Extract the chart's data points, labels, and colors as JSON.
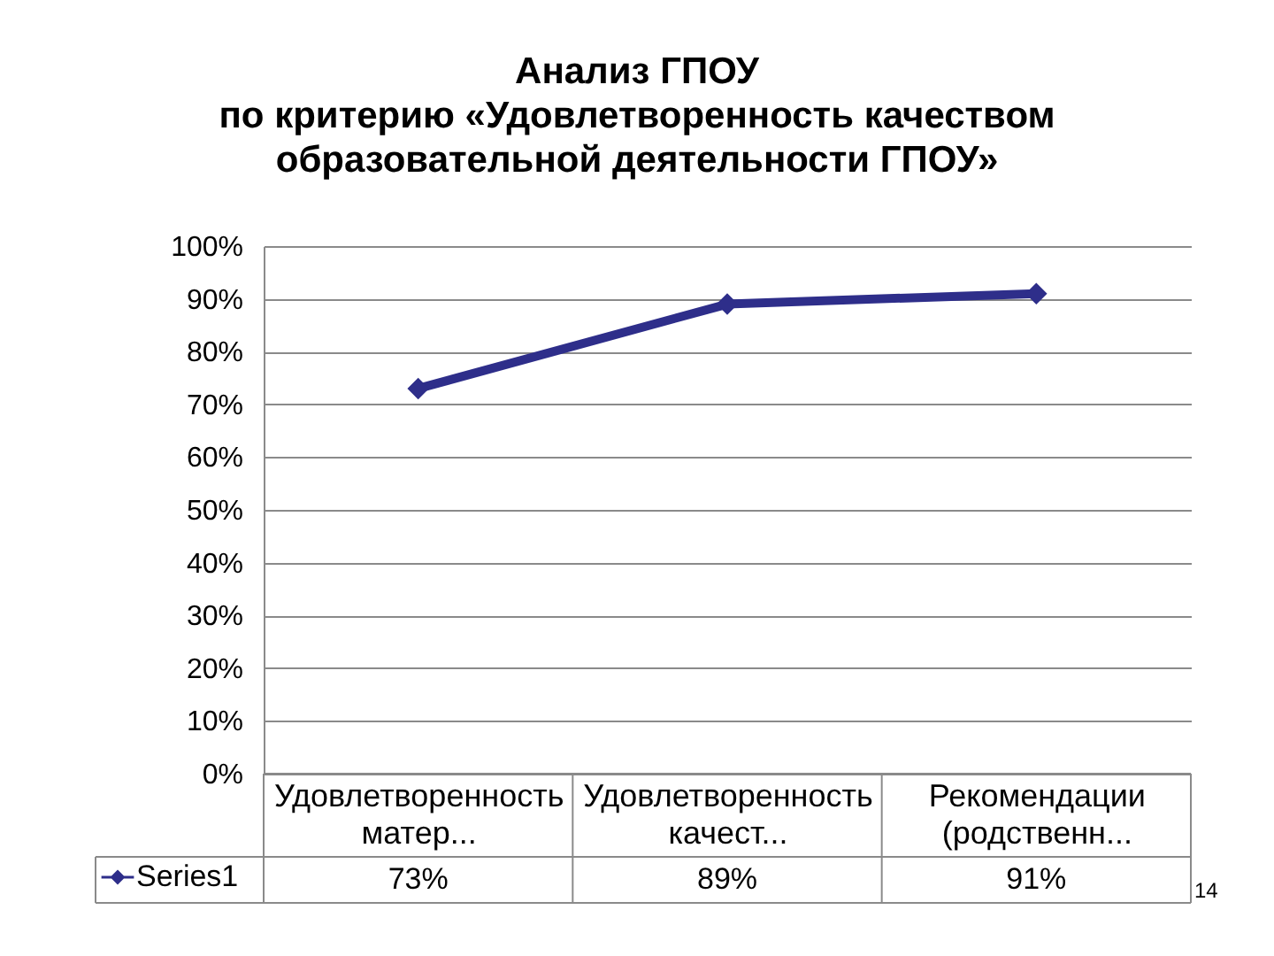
{
  "chart_data": {
    "type": "line",
    "title": "Анализ ГПОУ\nпо критерию «Удовлетворенность качеством\nобразовательной деятельности ГПОУ»",
    "categories": [
      "Удовлетворенность матер...",
      "Удовлетворенность качест...",
      "Рекомендации (родственн..."
    ],
    "series": [
      {
        "name": "Series1",
        "color": "#2e2e8a",
        "values": [
          73,
          89,
          91
        ],
        "value_labels": [
          "73%",
          "89%",
          "91%"
        ]
      }
    ],
    "ylim": [
      0,
      100
    ],
    "yticks": [
      {
        "value": 0,
        "label": "0%"
      },
      {
        "value": 10,
        "label": "10%"
      },
      {
        "value": 20,
        "label": "20%"
      },
      {
        "value": 30,
        "label": "30%"
      },
      {
        "value": 40,
        "label": "40%"
      },
      {
        "value": 50,
        "label": "50%"
      },
      {
        "value": 60,
        "label": "60%"
      },
      {
        "value": 70,
        "label": "70%"
      },
      {
        "value": 80,
        "label": "80%"
      },
      {
        "value": 90,
        "label": "90%"
      },
      {
        "value": 100,
        "label": "100%"
      }
    ],
    "grid": "y",
    "marker": "diamond",
    "line_style": "solid",
    "legend": "bottom left",
    "annotations": [
      "14"
    ]
  }
}
